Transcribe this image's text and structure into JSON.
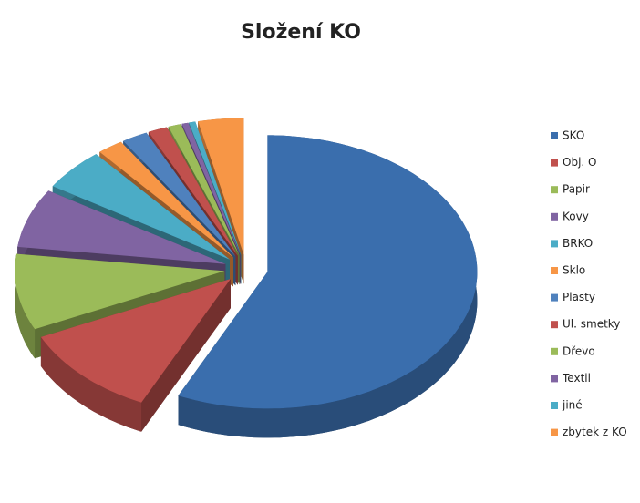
{
  "chart_data": {
    "type": "pie",
    "title": "Složení KO",
    "categories": [
      "SKO",
      "Obj. O",
      "Papir",
      "Kovy",
      "BRKO",
      "Sklo",
      "Plasty",
      "Ul. smetky",
      "Dřevo",
      "Textil",
      "jiné",
      "zbytek z KO"
    ],
    "values": [
      57,
      11,
      9,
      7,
      5,
      2,
      2,
      1.5,
      1,
      0.5,
      0.5,
      3.5
    ],
    "colors": [
      "#3a6ead",
      "#c0504d",
      "#9bbb59",
      "#8064a2",
      "#4bacc6",
      "#f79646",
      "#4f81bd",
      "#c0504d",
      "#9bbb59",
      "#8064a2",
      "#4bacc6",
      "#f79646"
    ],
    "legend": "right"
  }
}
